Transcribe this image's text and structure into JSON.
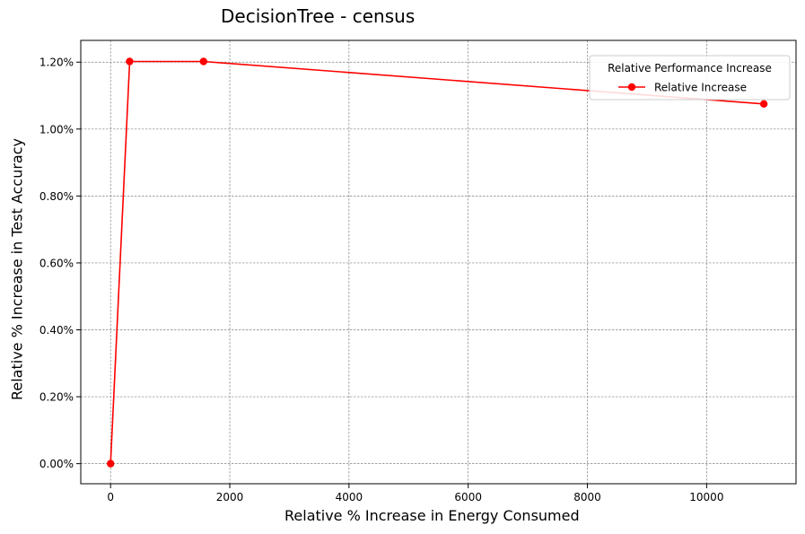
{
  "chart_data": {
    "type": "line",
    "title": "DecisionTree - census",
    "xlabel": "Relative % Increase in Energy Consumed",
    "ylabel": "Relative % Increase in Test Accuracy",
    "xlim": [
      -500,
      11500
    ],
    "ylim": [
      -0.06,
      1.265
    ],
    "x_ticks": [
      0,
      2000,
      4000,
      6000,
      8000,
      10000
    ],
    "x_tick_labels": [
      "0",
      "2000",
      "4000",
      "6000",
      "8000",
      "10000"
    ],
    "y_ticks": [
      0.0,
      0.2,
      0.4,
      0.6,
      0.8,
      1.0,
      1.2
    ],
    "y_tick_labels": [
      "0.00%",
      "0.20%",
      "0.40%",
      "0.60%",
      "0.80%",
      "1.00%",
      "1.20%"
    ],
    "grid": true,
    "legend": {
      "title": "Relative Performance Increase",
      "position": "top-right"
    },
    "series": [
      {
        "name": "Relative Increase",
        "color": "#ff0000",
        "marker": "circle",
        "x": [
          0,
          320,
          1560,
          10960
        ],
        "y": [
          0.0,
          1.202,
          1.202,
          1.075
        ]
      }
    ]
  }
}
